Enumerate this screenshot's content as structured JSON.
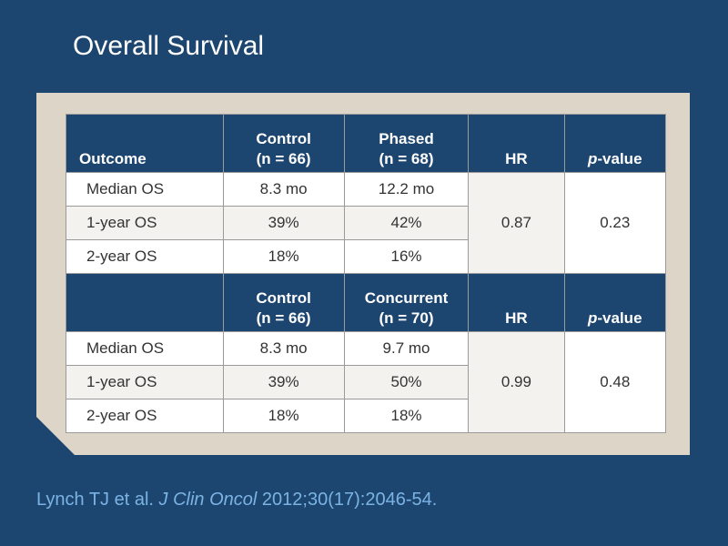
{
  "title": "Overall Survival",
  "table": {
    "header1": {
      "outcome": "Outcome",
      "control_label": "Control",
      "control_n": "(n = 66)",
      "arm_label": "Phased",
      "arm_n": "(n = 68)",
      "hr": "HR",
      "p_italic": "p",
      "p_rest": "-value"
    },
    "rows1": [
      {
        "label": "Median OS",
        "control": "8.3 mo",
        "arm": "12.2 mo"
      },
      {
        "label": "1-year OS",
        "control": "39%",
        "arm": "42%"
      },
      {
        "label": "2-year OS",
        "control": "18%",
        "arm": "16%"
      }
    ],
    "hr1": "0.87",
    "p1": "0.23",
    "header2": {
      "control_label": "Control",
      "control_n": "(n = 66)",
      "arm_label": "Concurrent",
      "arm_n": "(n = 70)",
      "hr": "HR",
      "p_italic": "p",
      "p_rest": "-value"
    },
    "rows2": [
      {
        "label": "Median OS",
        "control": "8.3 mo",
        "arm": "9.7 mo"
      },
      {
        "label": "1-year OS",
        "control": "39%",
        "arm": "50%"
      },
      {
        "label": "2-year OS",
        "control": "18%",
        "arm": "18%"
      }
    ],
    "hr2": "0.99",
    "p2": "0.48"
  },
  "citation": {
    "authors": "Lynch TJ et al.",
    "journal": "J Clin Oncol",
    "details": "2012;30(17):2046-54."
  }
}
